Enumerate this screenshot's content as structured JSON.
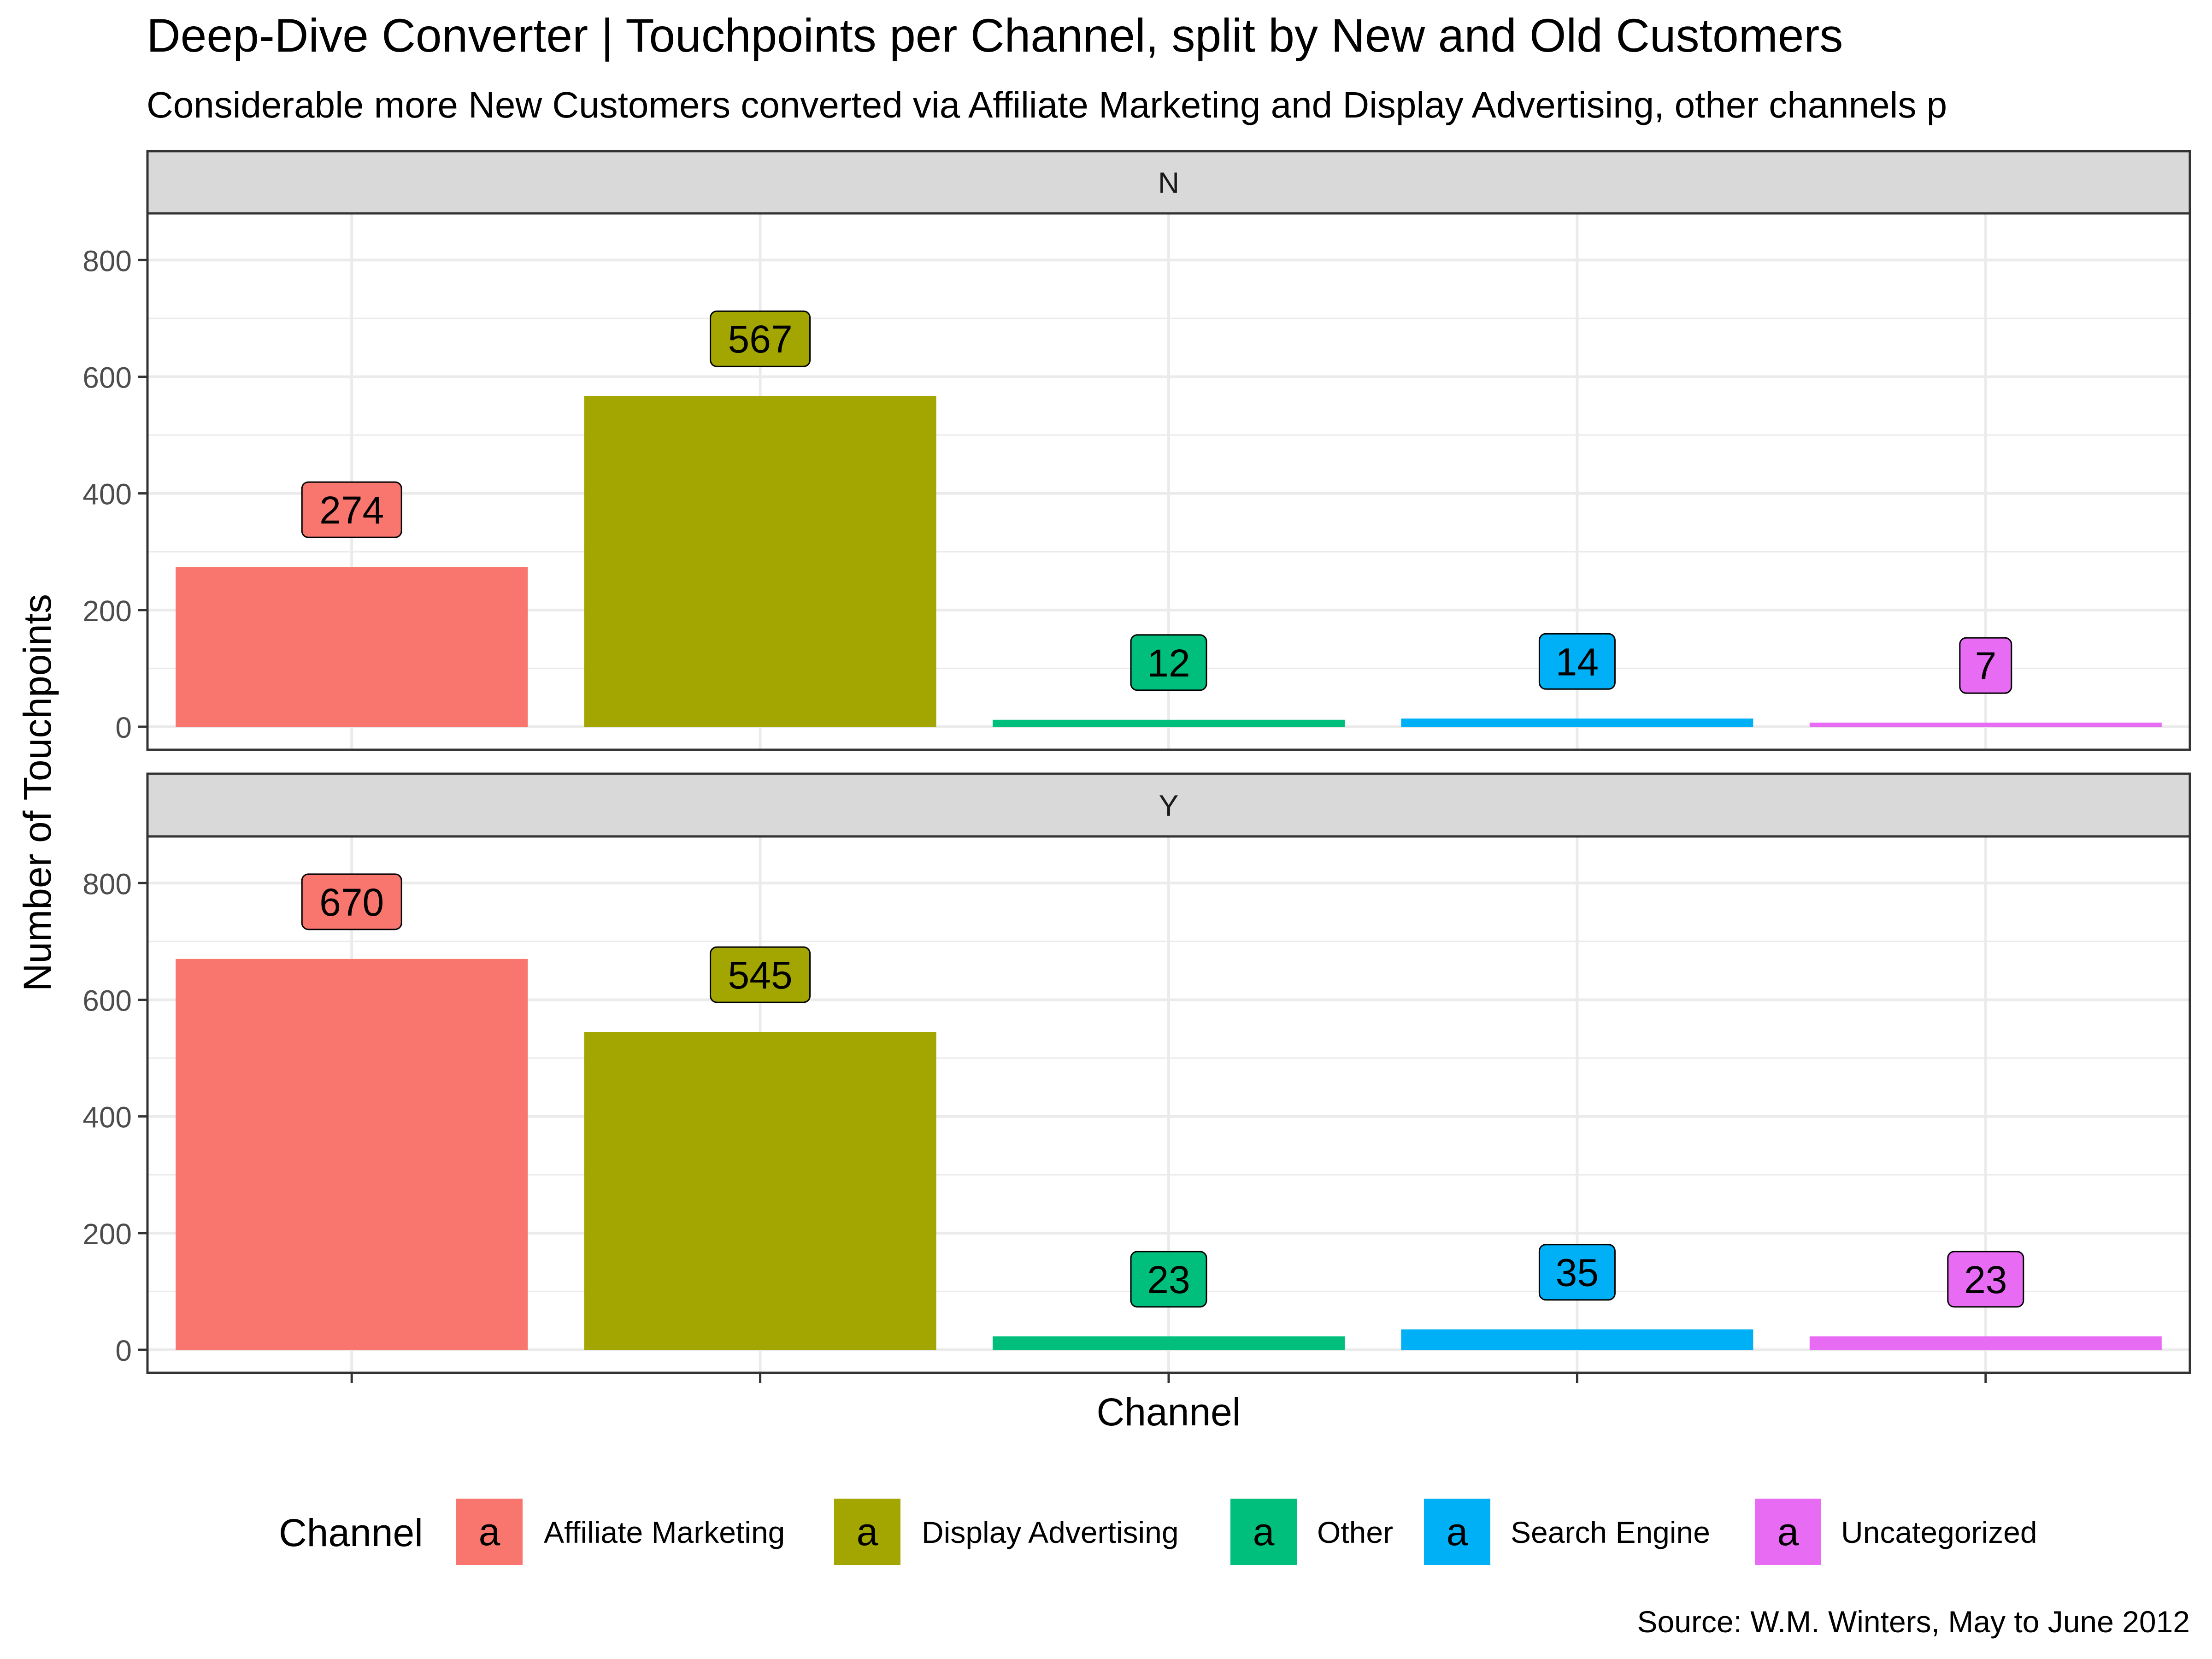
{
  "title": "Deep-Dive Converter | Touchpoints per Channel, split by New and Old Customers",
  "subtitle": "Considerable more New Customers converted via Affiliate Marketing and Display Advertising, other channels p",
  "caption": "Source: W.M. Winters, May to June 2012",
  "colors": {
    "Affiliate Marketing": "#F8766D",
    "Display Advertising": "#A3A500",
    "Other": "#00BF7D",
    "Search Engine": "#00B0F6",
    "Uncategorized": "#E76BF3",
    "strip_bg": "#D9D9D9",
    "grid": "#EBEBEB",
    "panel_border": "#333333"
  },
  "chart_data": {
    "type": "bar",
    "xlabel": "Channel",
    "ylabel": "Number of Touchpoints",
    "ylim": [
      0,
      880
    ],
    "yticks": [
      0,
      200,
      400,
      600,
      800
    ],
    "grid": true,
    "legend": {
      "title": "Channel",
      "position": "bottom",
      "key_glyph": "a",
      "entries": [
        "Affiliate Marketing",
        "Display Advertising",
        "Other",
        "Search Engine",
        "Uncategorized"
      ]
    },
    "categories": [
      "Affiliate Marketing",
      "Display Advertising",
      "Other",
      "Search Engine",
      "Uncategorized"
    ],
    "facets": [
      {
        "label": "N",
        "values": [
          274,
          567,
          12,
          14,
          7
        ]
      },
      {
        "label": "Y",
        "values": [
          670,
          545,
          23,
          35,
          23
        ]
      }
    ]
  }
}
